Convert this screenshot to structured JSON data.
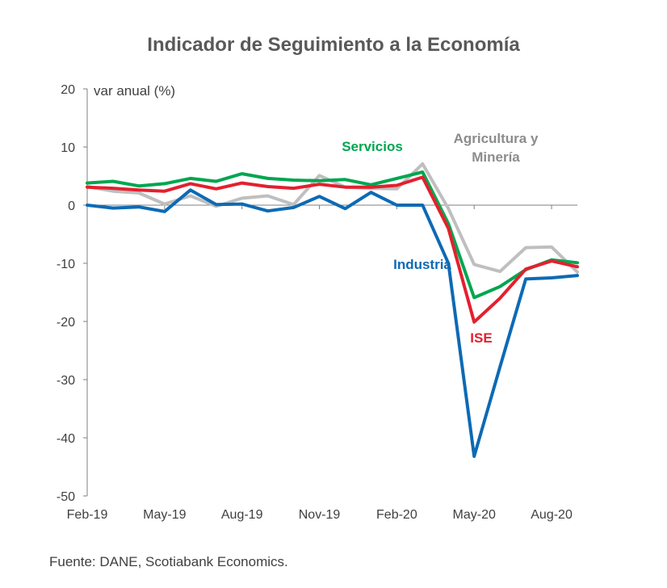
{
  "chart_data": {
    "type": "line",
    "title": "Indicador de Seguimiento a la Economía",
    "ylabel": "var anual (%)",
    "xlabel": "",
    "ylim": [
      -50,
      20
    ],
    "yticks": [
      20,
      10,
      0,
      -10,
      -20,
      -30,
      -40,
      -50
    ],
    "grid": false,
    "x": [
      "Feb-19",
      "Mar-19",
      "Apr-19",
      "May-19",
      "Jun-19",
      "Jul-19",
      "Aug-19",
      "Sep-19",
      "Oct-19",
      "Nov-19",
      "Dec-19",
      "Jan-20",
      "Feb-20",
      "Mar-20",
      "Apr-20",
      "May-20",
      "Jun-20",
      "Jul-20",
      "Aug-20",
      "Sep-20"
    ],
    "xtick_labels": [
      "Feb-19",
      "May-19",
      "Aug-19",
      "Nov-19",
      "Feb-20",
      "May-20",
      "Aug-20"
    ],
    "series": [
      {
        "name": "Agricultura y Minería",
        "label_lines": [
          "Agricultura y",
          "Minería"
        ],
        "color": "#bfbfbf",
        "values": [
          3.2,
          2.4,
          2.1,
          0.2,
          1.6,
          -0.2,
          1.2,
          1.6,
          0.1,
          5.1,
          3.1,
          2.9,
          2.8,
          7.1,
          -0.6,
          -10.2,
          -11.4,
          -7.3,
          -7.2,
          -11.5
        ]
      },
      {
        "name": "Servicios",
        "label_lines": [
          "Servicios"
        ],
        "color": "#00a650",
        "values": [
          3.8,
          4.1,
          3.3,
          3.7,
          4.6,
          4.1,
          5.4,
          4.6,
          4.3,
          4.2,
          4.4,
          3.5,
          4.6,
          5.7,
          -3.2,
          -15.9,
          -14.0,
          -11.1,
          -9.4,
          -9.9
        ]
      },
      {
        "name": "ISE",
        "label_lines": [
          "ISE"
        ],
        "color": "#e3202e",
        "values": [
          3.1,
          2.9,
          2.6,
          2.4,
          3.7,
          2.8,
          3.8,
          3.2,
          2.9,
          3.6,
          3.1,
          3.1,
          3.4,
          4.8,
          -4.0,
          -20.1,
          -16.0,
          -11.0,
          -9.6,
          -10.6
        ]
      },
      {
        "name": "Industria",
        "label_lines": [
          "Industria"
        ],
        "color": "#0d6ab4",
        "values": [
          0.0,
          -0.5,
          -0.3,
          -1.1,
          2.6,
          0.1,
          0.2,
          -1.0,
          -0.4,
          1.5,
          -0.6,
          2.2,
          0.0,
          0.0,
          -10.0,
          -43.2,
          -27.8,
          -12.7,
          -12.5,
          -12.1
        ]
      }
    ]
  },
  "source_note": "Fuente: DANE, Scotiabank Economics."
}
